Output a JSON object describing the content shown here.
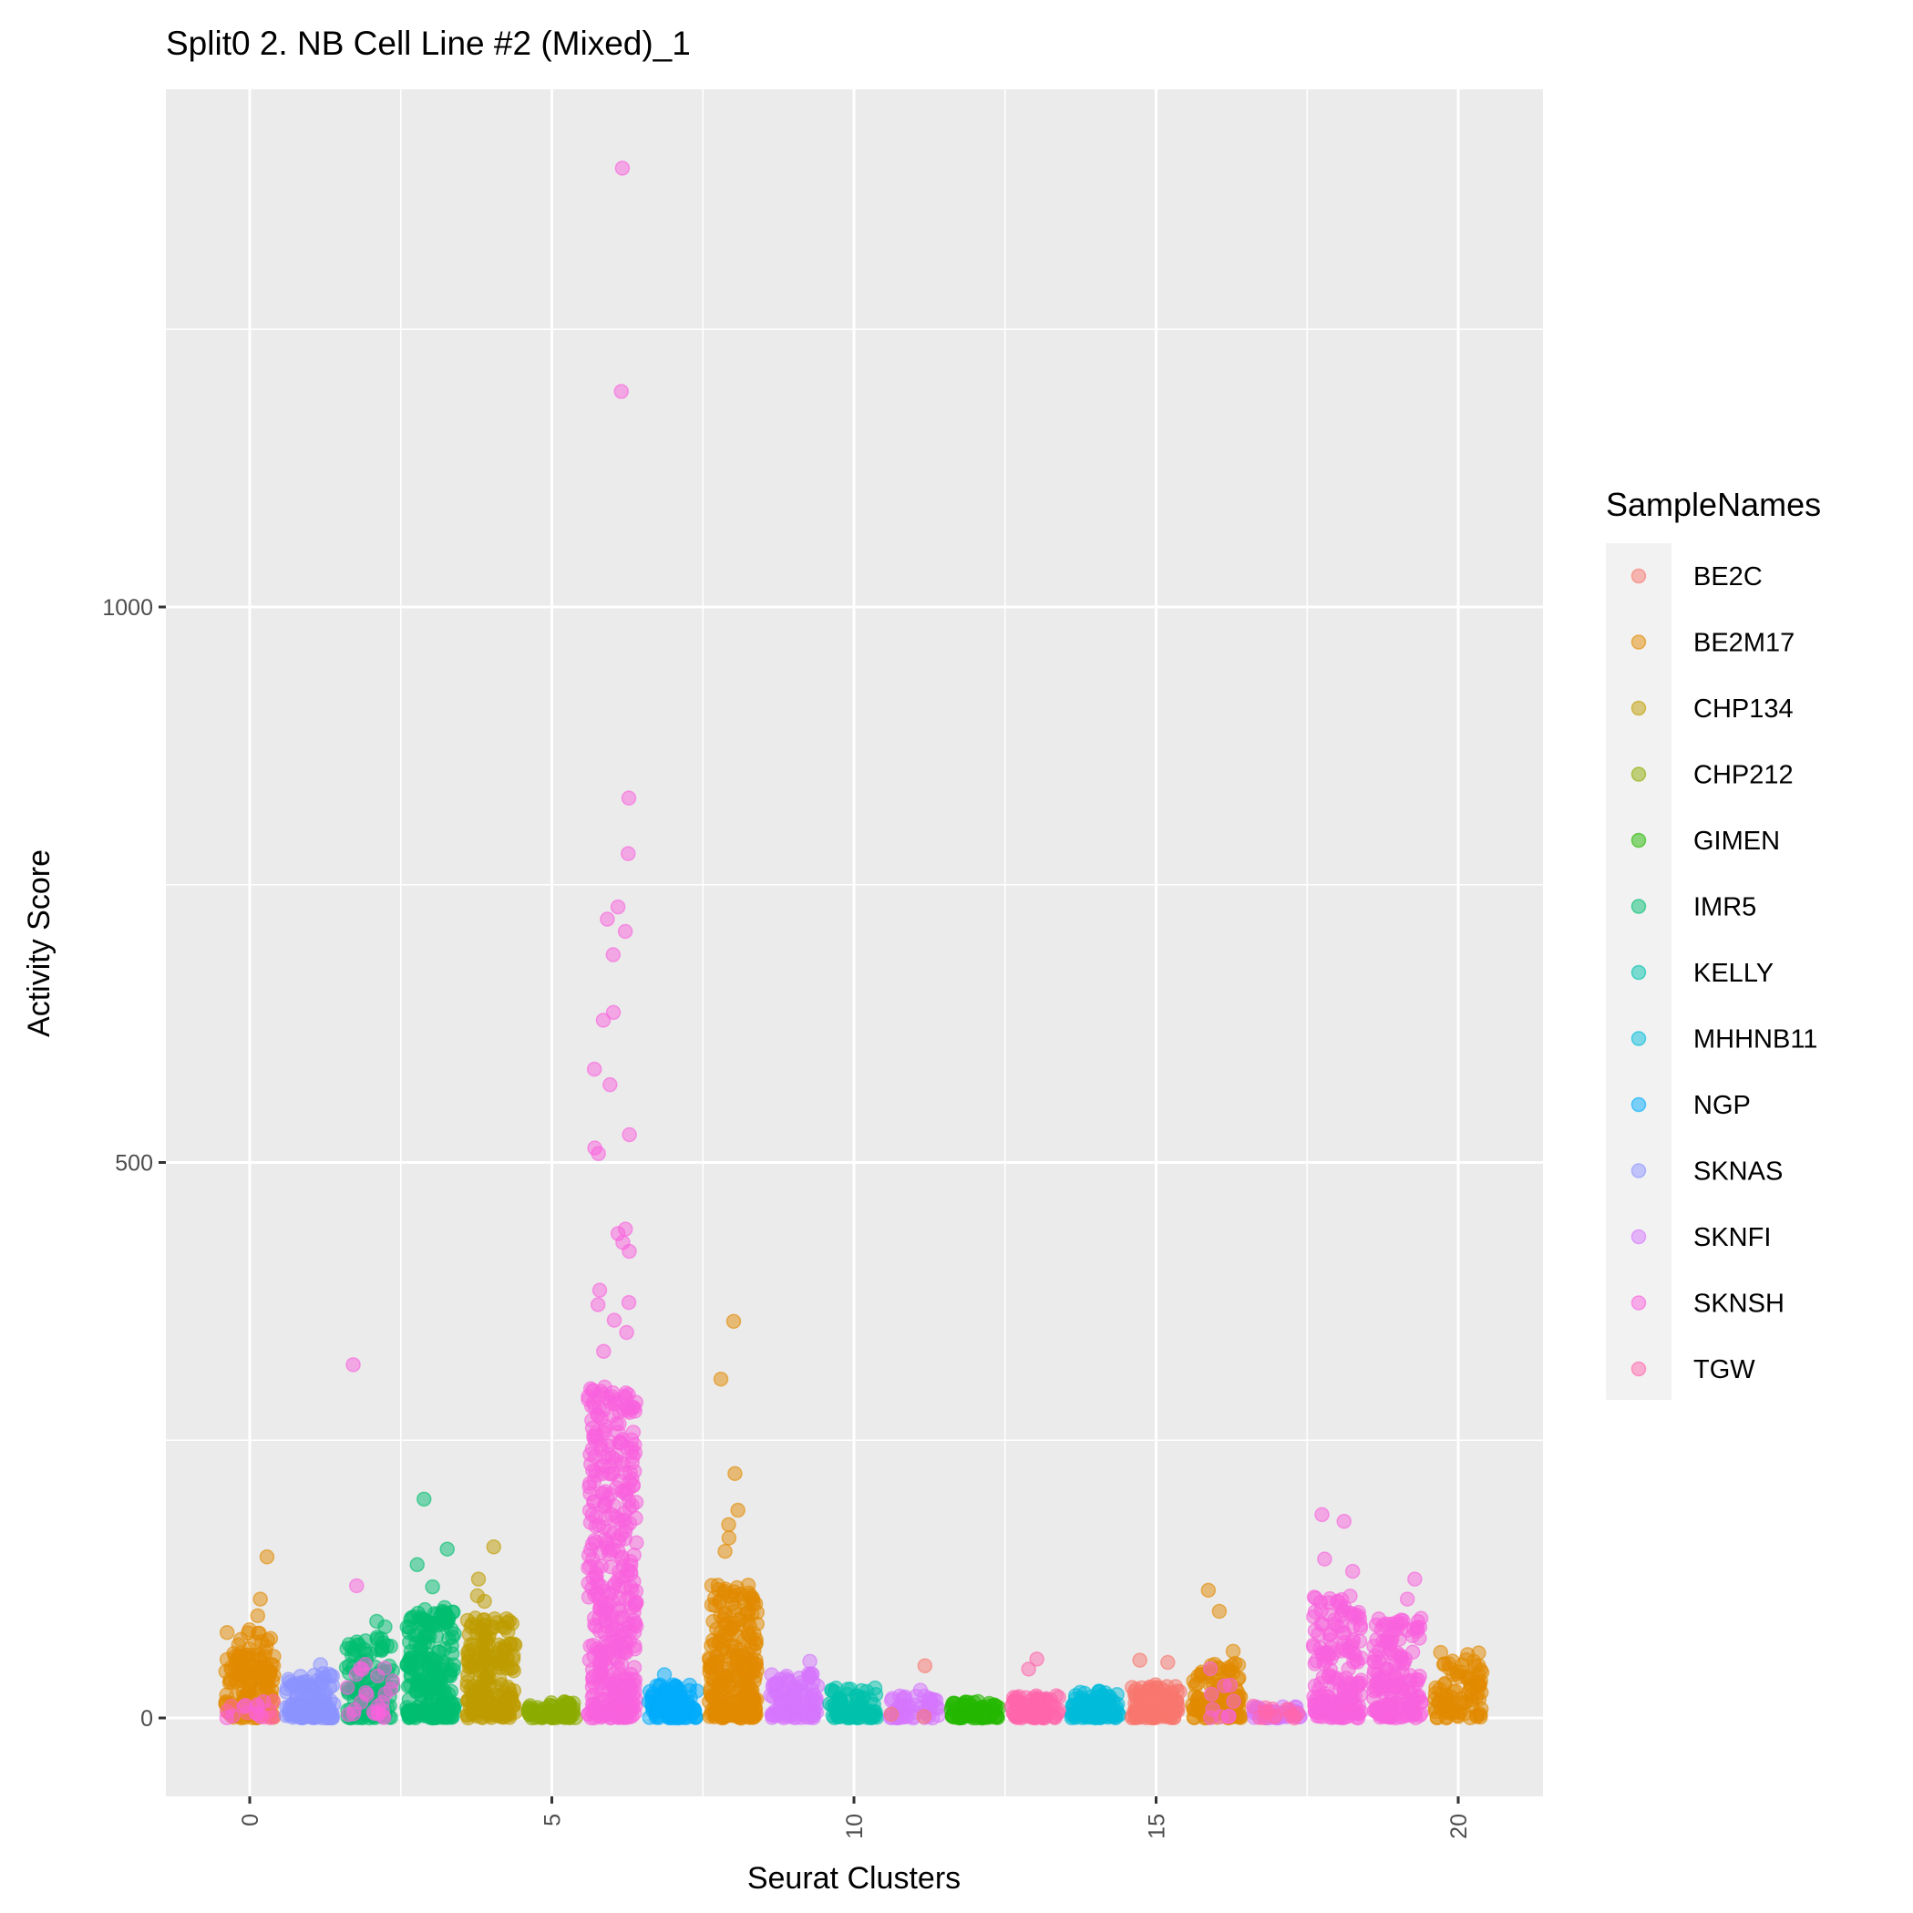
{
  "chart_data": {
    "type": "scatter",
    "title": "Split0 2. NB Cell Line #2 (Mixed)_1",
    "xlabel": "Seurat Clusters",
    "ylabel": "Activity Score",
    "xlim": [
      -1.4,
      21.4
    ],
    "ylim": [
      -70,
      1465
    ],
    "x_ticks": [
      0,
      5,
      10,
      15,
      20
    ],
    "y_ticks": [
      0,
      500,
      1000
    ],
    "grid": true,
    "legend": {
      "title": "SampleNames",
      "placement": "right",
      "entries": [
        {
          "name": "BE2C",
          "color": "#F8766D"
        },
        {
          "name": "BE2M17",
          "color": "#E18A00"
        },
        {
          "name": "CHP134",
          "color": "#BE9C00"
        },
        {
          "name": "CHP212",
          "color": "#8CAB00"
        },
        {
          "name": "GIMEN",
          "color": "#24B700"
        },
        {
          "name": "IMR5",
          "color": "#00BE70"
        },
        {
          "name": "KELLY",
          "color": "#00C1AB"
        },
        {
          "name": "MHHNB11",
          "color": "#00BBDA"
        },
        {
          "name": "NGP",
          "color": "#00ACFC"
        },
        {
          "name": "SKNAS",
          "color": "#8B93FF"
        },
        {
          "name": "SKNFI",
          "color": "#D575FE"
        },
        {
          "name": "SKNSH",
          "color": "#F962DD"
        },
        {
          "name": "TGW",
          "color": "#FF65AC"
        }
      ]
    },
    "clusters": [
      {
        "cluster": 0,
        "sample": "BE2M17",
        "bulk_max": 80,
        "n": 160,
        "outliers": [
          145,
          107,
          92
        ],
        "minor": [
          {
            "sample": "TGW",
            "bulk_max": 20,
            "n": 10
          },
          {
            "sample": "SKNSH",
            "bulk_max": 15,
            "n": 8
          }
        ]
      },
      {
        "cluster": 1,
        "sample": "SKNAS",
        "bulk_max": 40,
        "n": 120,
        "outliers": [
          48
        ]
      },
      {
        "cluster": 2,
        "sample": "IMR5",
        "bulk_max": 75,
        "n": 110,
        "outliers": [
          87,
          82
        ],
        "minor": [
          {
            "sample": "SKNSH",
            "bulk_max": 50,
            "n": 25,
            "outliers": [
              318,
              119
            ]
          }
        ]
      },
      {
        "cluster": 3,
        "sample": "IMR5",
        "bulk_max": 100,
        "n": 220,
        "outliers": [
          197,
          152,
          138,
          118
        ]
      },
      {
        "cluster": 4,
        "sample": "CHP134",
        "bulk_max": 90,
        "n": 200,
        "outliers": [
          154,
          125,
          110,
          105
        ]
      },
      {
        "cluster": 5,
        "sample": "CHP212",
        "bulk_max": 15,
        "n": 80,
        "outliers": []
      },
      {
        "cluster": 6,
        "sample": "SKNSH",
        "bulk_max": 300,
        "n": 420,
        "outliers": [
          1395,
          1194,
          828,
          778,
          730,
          719,
          708,
          687,
          635,
          628,
          584,
          570,
          525,
          513,
          508,
          440,
          436,
          428,
          420,
          385,
          374,
          372,
          358,
          347,
          330
        ]
      },
      {
        "cluster": 7,
        "sample": "NGP",
        "bulk_max": 30,
        "n": 100,
        "outliers": [
          39
        ]
      },
      {
        "cluster": 8,
        "sample": "BE2M17",
        "bulk_max": 120,
        "n": 260,
        "outliers": [
          357,
          305,
          220,
          187,
          174,
          162,
          150
        ]
      },
      {
        "cluster": 9,
        "sample": "SKNFI",
        "bulk_max": 40,
        "n": 100,
        "outliers": [
          51
        ]
      },
      {
        "cluster": 10,
        "sample": "KELLY",
        "bulk_max": 28,
        "n": 90,
        "outliers": []
      },
      {
        "cluster": 11,
        "sample": "SKNFI",
        "bulk_max": 20,
        "n": 50,
        "outliers": [
          25
        ],
        "minor": [
          {
            "sample": "BE2C",
            "bulk_max": 5,
            "n": 2,
            "outliers": [
              47
            ]
          }
        ]
      },
      {
        "cluster": 12,
        "sample": "GIMEN",
        "bulk_max": 15,
        "n": 80,
        "outliers": []
      },
      {
        "cluster": 13,
        "sample": "TGW",
        "bulk_max": 20,
        "n": 90,
        "outliers": [
          53,
          44
        ]
      },
      {
        "cluster": 14,
        "sample": "MHHNB11",
        "bulk_max": 25,
        "n": 100,
        "outliers": []
      },
      {
        "cluster": 15,
        "sample": "BE2C",
        "bulk_max": 30,
        "n": 100,
        "outliers": [
          52,
          50
        ]
      },
      {
        "cluster": 16,
        "sample": "BE2M17",
        "bulk_max": 50,
        "n": 110,
        "outliers": [
          115,
          96,
          60
        ],
        "minor": [
          {
            "sample": "SKNSH",
            "bulk_max": 48,
            "n": 10
          }
        ]
      },
      {
        "cluster": 17,
        "sample": "SKNFI",
        "bulk_max": 10,
        "n": 50,
        "outliers": [],
        "minor": [
          {
            "sample": "TGW",
            "bulk_max": 12,
            "n": 15
          }
        ]
      },
      {
        "cluster": 18,
        "sample": "SKNSH",
        "bulk_max": 110,
        "n": 180,
        "outliers": [
          183,
          177,
          143,
          132
        ]
      },
      {
        "cluster": 19,
        "sample": "SKNSH",
        "bulk_max": 90,
        "n": 160,
        "outliers": [
          125,
          107
        ]
      },
      {
        "cluster": 20,
        "sample": "BE2M17",
        "bulk_max": 60,
        "n": 90,
        "outliers": []
      }
    ]
  }
}
